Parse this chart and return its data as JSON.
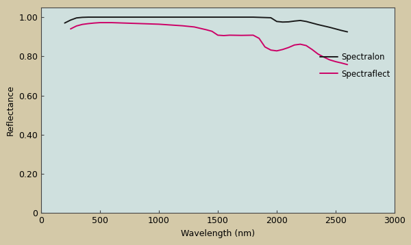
{
  "background_outer": "#d4c9a8",
  "background_inner": "#cfe0de",
  "xlim": [
    0,
    3000
  ],
  "ylim": [
    0,
    1.05
  ],
  "xlabel": "Wavelength (nm)",
  "ylabel": "Reflectance",
  "xticks": [
    0,
    500,
    1000,
    1500,
    2000,
    2500,
    3000
  ],
  "yticks": [
    0,
    0.2,
    0.4,
    0.6,
    0.8,
    1.0
  ],
  "ytick_labels": [
    "0",
    "0.20",
    "0.40",
    "0.60",
    "0.80",
    "1.00"
  ],
  "spectralon_color": "#1a1a1a",
  "spectraflect_color": "#cc0066",
  "spectralon_x": [
    200,
    250,
    300,
    350,
    400,
    450,
    500,
    600,
    700,
    800,
    900,
    1000,
    1100,
    1200,
    1300,
    1400,
    1500,
    1600,
    1700,
    1800,
    1900,
    1950,
    2000,
    2050,
    2100,
    2150,
    2200,
    2250,
    2300,
    2350,
    2400,
    2450,
    2500,
    2550,
    2600
  ],
  "spectralon_y": [
    0.97,
    0.985,
    0.996,
    0.999,
    1.0,
    1.0,
    1.0,
    1.0,
    1.0,
    1.0,
    1.0,
    1.0,
    1.0,
    1.0,
    1.0,
    1.0,
    1.0,
    1.0,
    1.0,
    1.0,
    0.998,
    0.997,
    0.978,
    0.975,
    0.976,
    0.98,
    0.983,
    0.978,
    0.97,
    0.962,
    0.955,
    0.948,
    0.94,
    0.932,
    0.925
  ],
  "spectraflect_x": [
    250,
    300,
    350,
    400,
    450,
    500,
    600,
    700,
    800,
    900,
    1000,
    1100,
    1200,
    1300,
    1400,
    1450,
    1500,
    1550,
    1600,
    1700,
    1800,
    1850,
    1900,
    1950,
    2000,
    2050,
    2100,
    2150,
    2200,
    2250,
    2300,
    2350,
    2400,
    2450,
    2500,
    2550,
    2600
  ],
  "spectraflect_y": [
    0.94,
    0.955,
    0.963,
    0.967,
    0.97,
    0.972,
    0.972,
    0.97,
    0.968,
    0.966,
    0.964,
    0.96,
    0.956,
    0.95,
    0.936,
    0.928,
    0.908,
    0.906,
    0.908,
    0.907,
    0.908,
    0.892,
    0.848,
    0.832,
    0.828,
    0.835,
    0.845,
    0.858,
    0.862,
    0.855,
    0.835,
    0.812,
    0.796,
    0.782,
    0.773,
    0.766,
    0.758
  ],
  "legend_spectralon": "Spectralon",
  "legend_spectraflect": "Spectraflect",
  "linewidth": 1.4,
  "spine_color": "#444444",
  "tick_color": "#444444",
  "label_fontsize": 9,
  "tick_fontsize": 9
}
